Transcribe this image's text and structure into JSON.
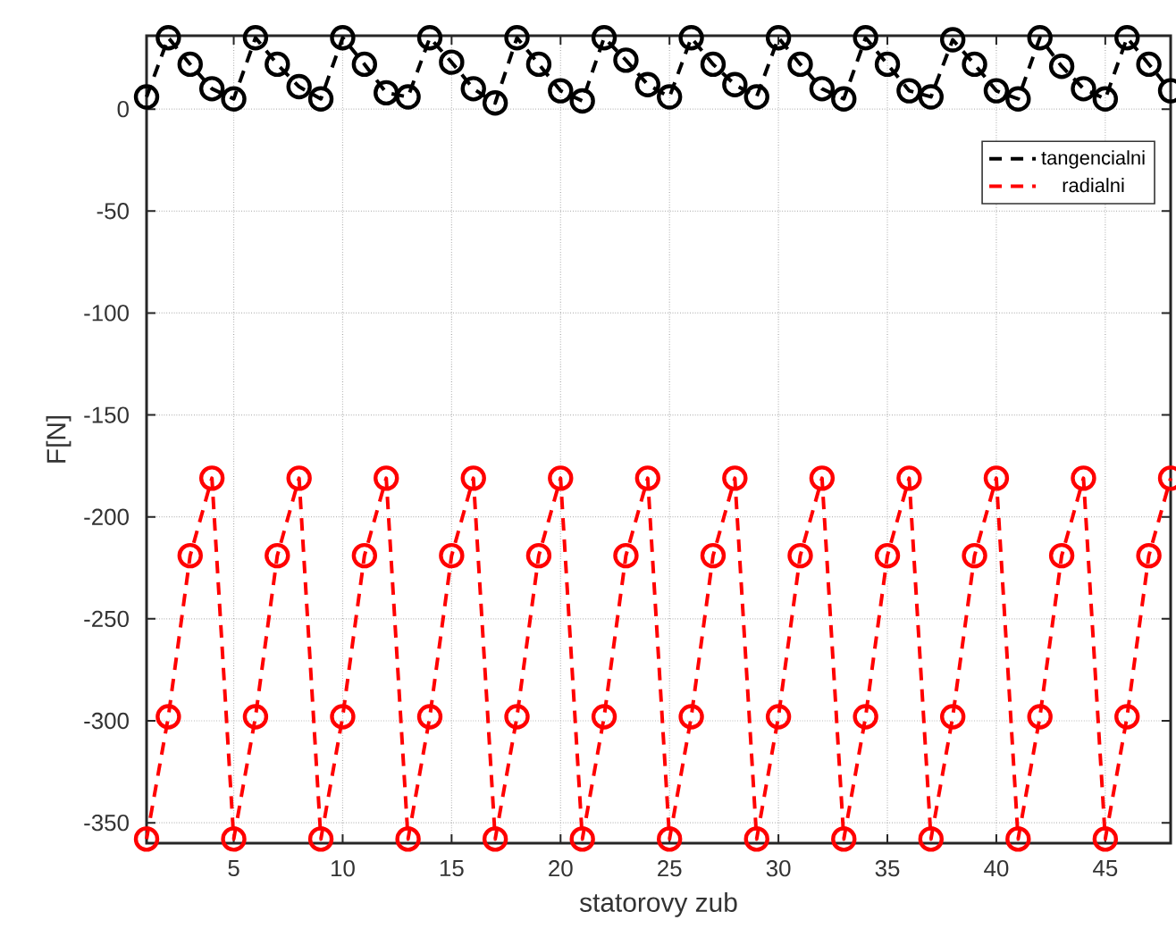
{
  "chart_data": {
    "type": "line",
    "xlabel": "statorovy zub",
    "ylabel": "F[N]",
    "x": [
      1,
      2,
      3,
      4,
      5,
      6,
      7,
      8,
      9,
      10,
      11,
      12,
      13,
      14,
      15,
      16,
      17,
      18,
      19,
      20,
      21,
      22,
      23,
      24,
      25,
      26,
      27,
      28,
      29,
      30,
      31,
      32,
      33,
      34,
      35,
      36,
      37,
      38,
      39,
      40,
      41,
      42,
      43,
      44,
      45,
      46,
      47,
      48
    ],
    "series": [
      {
        "name": "tangencialni",
        "color": "#000000",
        "values": [
          6,
          35,
          22,
          10,
          5,
          35,
          22,
          11,
          5,
          35,
          22,
          8,
          6,
          35,
          23,
          10,
          3,
          35,
          22,
          9,
          4,
          35,
          24,
          12,
          6,
          35,
          22,
          12,
          6,
          35,
          22,
          10,
          5,
          35,
          22,
          9,
          6,
          34,
          22,
          9,
          5,
          35,
          21,
          10,
          5,
          35,
          22,
          9
        ]
      },
      {
        "name": "radialni",
        "color": "#ff0000",
        "values": [
          -358,
          -298,
          -219,
          -181,
          -358,
          -298,
          -219,
          -181,
          -358,
          -298,
          -219,
          -181,
          -358,
          -298,
          -219,
          -181,
          -358,
          -298,
          -219,
          -181,
          -358,
          -298,
          -219,
          -181,
          -358,
          -298,
          -219,
          -181,
          -358,
          -298,
          -219,
          -181,
          -358,
          -298,
          -219,
          -181,
          -358,
          -298,
          -219,
          -181,
          -358,
          -298,
          -219,
          -181,
          -358,
          -298,
          -219,
          -181
        ]
      }
    ],
    "xlim": [
      1,
      48
    ],
    "ylim": [
      -360,
      36
    ],
    "xticks": [
      5,
      10,
      15,
      20,
      25,
      30,
      35,
      40,
      45
    ],
    "yticks": [
      -350,
      -300,
      -250,
      -200,
      -150,
      -100,
      -50,
      0
    ],
    "grid": true,
    "legend": "top right",
    "marker": "circle",
    "line_style": "dashed"
  }
}
